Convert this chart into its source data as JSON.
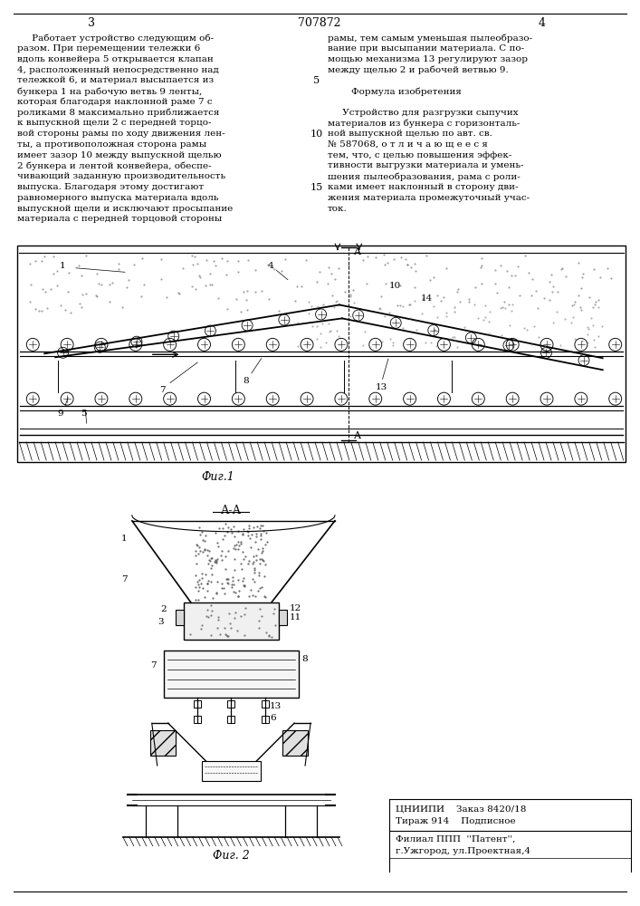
{
  "page_width": 7.07,
  "page_height": 10.0,
  "bg_color": "#ffffff",
  "line_color": "#000000",
  "text_color": "#000000",
  "header": {
    "left_num": "3",
    "center_num": "707872",
    "right_num": "4"
  },
  "left_col_text": [
    "     Работает устройство следующим об-",
    "разом. При перемещении тележки 6",
    "вдоль конвейера 5 открывается клапан",
    "4, расположенный непосредственно над",
    "тележкой 6, и материал высыпается из",
    "бункера 1 на рабочую ветвь 9 ленты,",
    "которая благодаря наклонной раме 7 с",
    "роликами 8 максимально приближается",
    "к выпускной щели 2 с передней торцо-",
    "вой стороны рамы по ходу движения лен-",
    "ты, а противоположная сторона рамы",
    "имеет зазор 10 между выпускной щелью",
    "2 бункера и лентой конвейера, обеспе-",
    "чивающий заданную производительность",
    "выпуска. Благодаря этому достигают",
    "равномерного выпуска материала вдоль",
    "выпускной щели и исключают просыпание",
    "материала с передней торцовой стороны"
  ],
  "right_col_text": [
    "рамы, тем самым уменьшая пылеобразо-",
    "вание при высыпании материала. С по-",
    "мощью механизма 13 регулируют зазор",
    "между щелью 2 и рабочей ветвью 9.",
    "",
    "        Формула изобретения",
    "",
    "     Устройство для разгрузки сыпучих",
    "материалов из бункера с горизонталь-",
    "ной выпускной щелью по авт. св.",
    "№ 587068, о т л и ч а ю щ е е с я",
    "тем, что, с целью повышения эффек-",
    "тивности выгрузки материала и умень-",
    "шения пылеобразования, рама с роли-",
    "ками имеет наклонный в сторону дви-",
    "жения материала промежуточный учас-",
    "ток."
  ],
  "fig1_label": "Фиг.1",
  "fig2_label": "Фиг. 2",
  "section_label": "А-А",
  "bottom_text": {
    "line1": "ЦНИИПИ    Заказ 8420/18",
    "line2": "Тираж 914    Подписное",
    "line3": "Филиал ППП  ''Патент'',",
    "line4": "г.Ужгород, ул.Проектная,4"
  }
}
